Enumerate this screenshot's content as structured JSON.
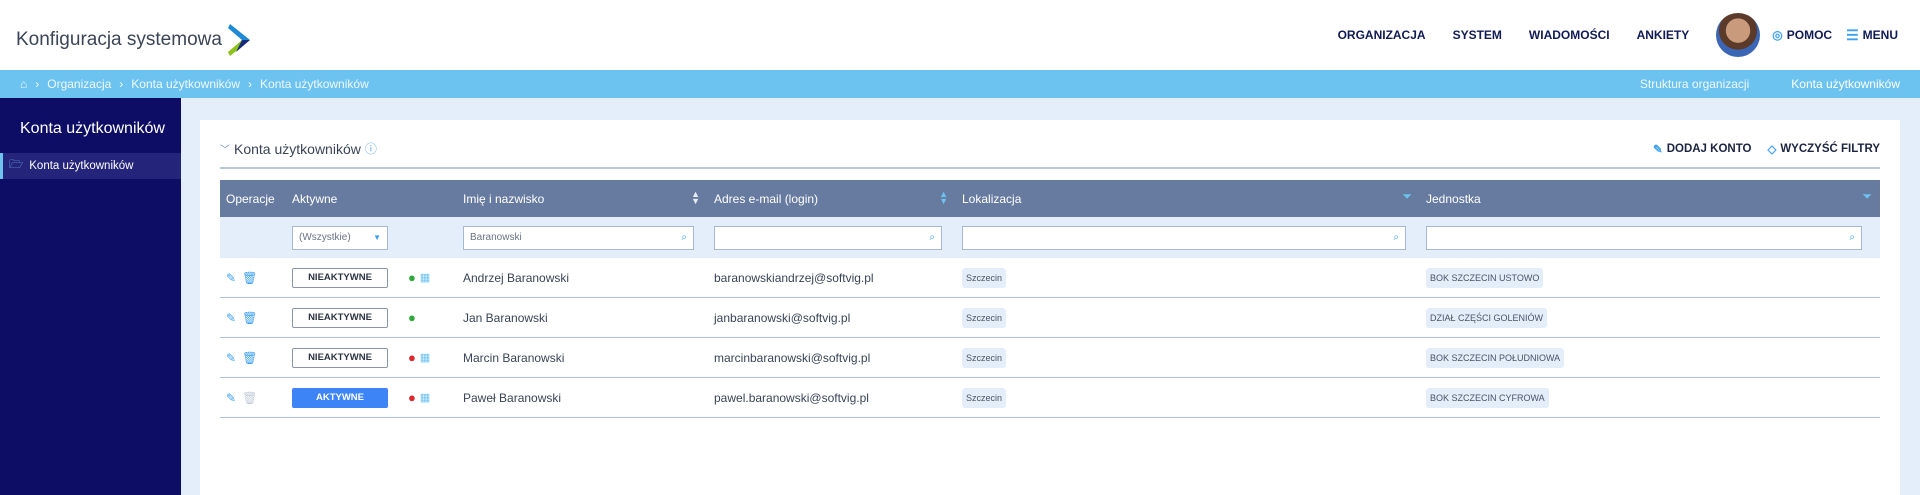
{
  "header": {
    "logo_text": "Konfiguracja systemowa",
    "nav": [
      "ORGANIZACJA",
      "SYSTEM",
      "WIADOMOŚCI",
      "ANKIETY"
    ],
    "help": "POMOC",
    "menu": "MENU"
  },
  "breadcrumb": {
    "items": [
      "Organizacja",
      "Konta użytkowników",
      "Konta użytkowników"
    ],
    "right_links": [
      "Struktura organizacji",
      "Konta użytkowników"
    ]
  },
  "sidebar": {
    "title": "Konta użytkowników",
    "items": [
      {
        "label": "Konta użytkowników"
      }
    ]
  },
  "panel": {
    "title": "Konta użytkowników",
    "add_label": "DODAJ KONTO",
    "clear_label": "WYCZYŚĆ FILTRY"
  },
  "table": {
    "columns": [
      "Operacje",
      "Aktywne",
      "Imię i nazwisko",
      "Adres e-mail (login)",
      "Lokalizacja",
      "Jednostka"
    ],
    "filters": {
      "active": "(Wszystkie)",
      "name": "Baranowski",
      "email": "",
      "location": "",
      "unit": ""
    },
    "rows": [
      {
        "status": "NIEAKTYWNE",
        "active": false,
        "user_color": "#2eaa3c",
        "calendar": true,
        "name": "Andrzej Baranowski",
        "email": "baranowskiandrzej@softvig.pl",
        "location": "Szczecin",
        "unit": "BOK SZCZECIN USTOWO"
      },
      {
        "status": "NIEAKTYWNE",
        "active": false,
        "user_color": "#2eaa3c",
        "calendar": false,
        "name": "Jan Baranowski",
        "email": "janbaranowski@softvig.pl",
        "location": "Szczecin",
        "unit": "DZIAŁ CZĘŚCI GOLENIÓW"
      },
      {
        "status": "NIEAKTYWNE",
        "active": false,
        "user_color": "#e0262b",
        "calendar": true,
        "name": "Marcin Baranowski",
        "email": "marcinbaranowski@softvig.pl",
        "location": "Szczecin",
        "unit": "BOK SZCZECIN POŁUDNIOWA"
      },
      {
        "status": "AKTYWNE",
        "active": true,
        "user_color": "#e0262b",
        "calendar": true,
        "name": "Paweł Baranowski",
        "email": "pawel.baranowski@softvig.pl",
        "location": "Szczecin",
        "unit": "BOK SZCZECIN CYFROWA"
      }
    ]
  },
  "colors": {
    "header_bar": "#6cc3f0",
    "sidebar": "#0d0d66",
    "table_header": "#677ba0",
    "active_button": "#3d84f7"
  }
}
